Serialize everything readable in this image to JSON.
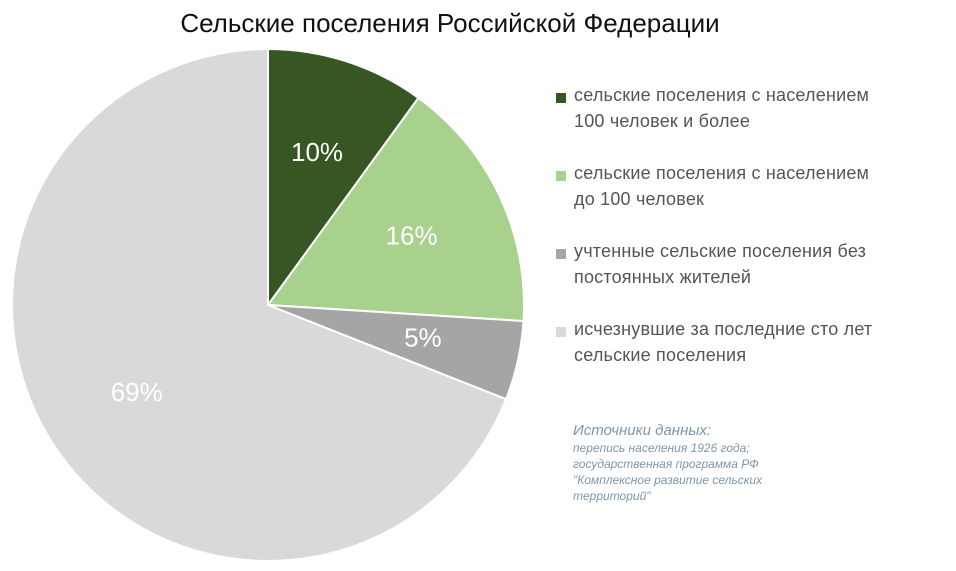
{
  "chart_data": {
    "type": "pie",
    "title": "Сельские поселения Российской Федерации",
    "slices": [
      {
        "label": "сельские поселения с населением 100 человек и более",
        "value": 10,
        "display": "10%",
        "color": "#375623"
      },
      {
        "label": "сельские поселения с населением до 100 человек",
        "value": 16,
        "display": "16%",
        "color": "#a9d18e"
      },
      {
        "label": "учтенные сельские поселения без постоянных жителей",
        "value": 5,
        "display": "5%",
        "color": "#a5a5a5"
      },
      {
        "label": "исчезнувшие за последние сто лет сельские поселения",
        "value": 69,
        "display": "69%",
        "color": "#d9d9d9"
      }
    ],
    "legend_position": "right"
  },
  "legend": {
    "items": [
      {
        "line1": "сельские поселения с населением",
        "line2": "100 человек и более"
      },
      {
        "line1": "сельские поселения с населением",
        "line2": "до 100 человек"
      },
      {
        "line1": "учтенные сельские поселения без",
        "line2": "постоянных жителей"
      },
      {
        "line1": "исчезнувшие за последние сто лет",
        "line2": "сельские поселения"
      }
    ]
  },
  "sources": {
    "title": "Источники данных:",
    "lines": [
      "перепись населения 1926 года;",
      "государственная программа РФ",
      "\"Комплексное развитие сельских",
      "территорий\""
    ]
  }
}
